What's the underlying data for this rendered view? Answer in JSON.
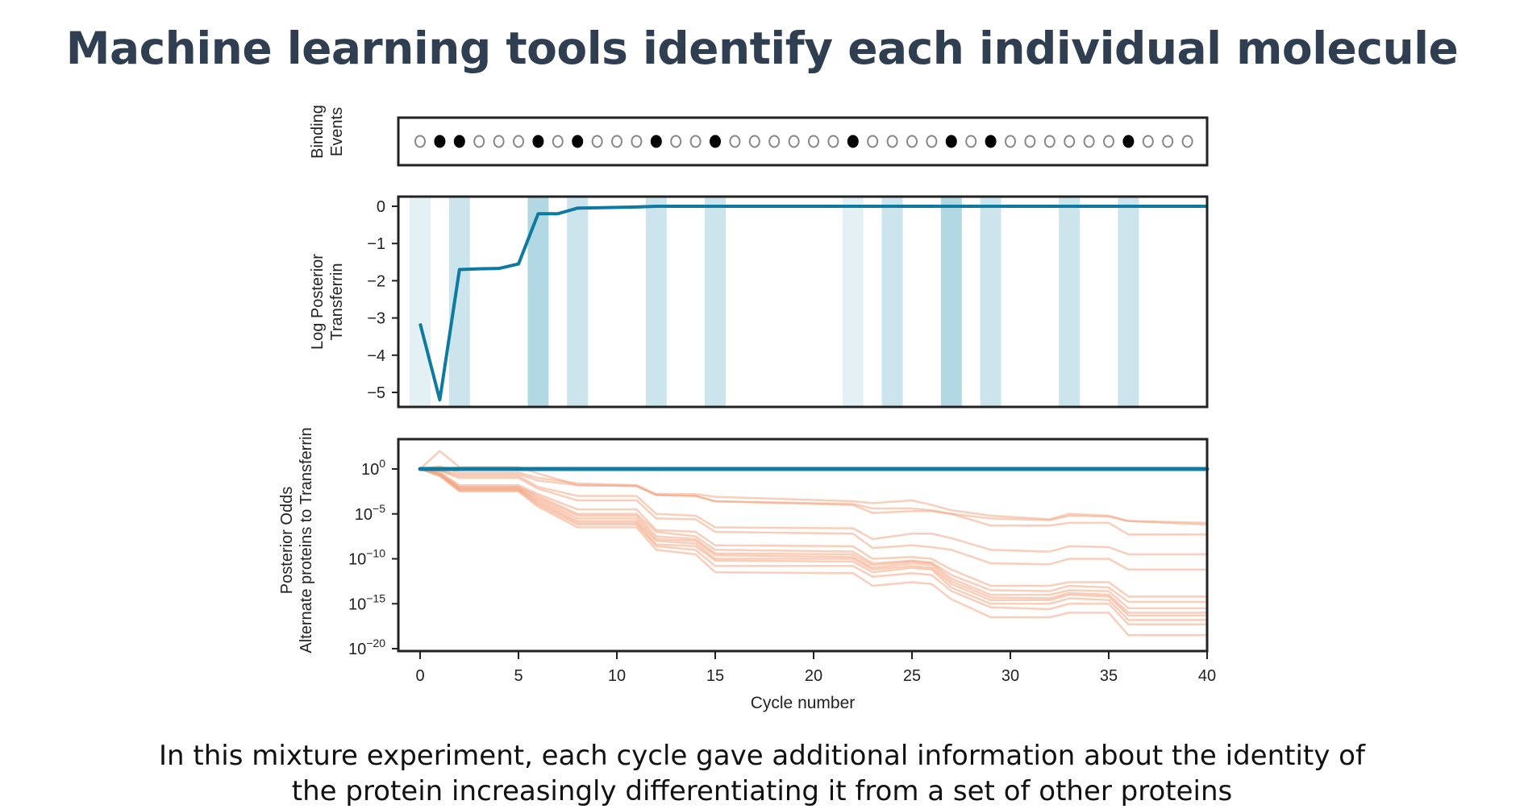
{
  "header": {
    "title": "Machine learning tools identify each individual molecule"
  },
  "caption": {
    "line1": "In this mixture experiment, each cycle gave additional information about the identity of",
    "line2": "the protein increasingly differentiating it from a set of other proteins"
  },
  "colors": {
    "transferrin": "#0e7aa0",
    "alternates": "#f4a582",
    "stripe_light": "#e3f1f5",
    "stripe_medium": "#cce5ed",
    "stripe_dark": "#b2d8e3",
    "event_filled": "#000000",
    "event_empty": "#888888"
  },
  "chart_data": [
    {
      "type": "scatter",
      "ylabel": [
        "Binding",
        "Events"
      ],
      "cycles": [
        0,
        1,
        2,
        3,
        4,
        5,
        6,
        7,
        8,
        9,
        10,
        11,
        12,
        13,
        14,
        15,
        16,
        17,
        18,
        19,
        20,
        21,
        22,
        23,
        24,
        25,
        26,
        27,
        28,
        29,
        30,
        31,
        32,
        33,
        34,
        35,
        36,
        37,
        38,
        39
      ],
      "binding_cycles": [
        1,
        2,
        6,
        8,
        12,
        15,
        22,
        27,
        29,
        36
      ]
    },
    {
      "type": "line",
      "ylabel": [
        "Log Posterior",
        "Transferrin"
      ],
      "ylim": [
        -5.5,
        0.15
      ],
      "xlim": [
        -0.6,
        40
      ],
      "yticks": [
        "0",
        "−1",
        "−2",
        "−3",
        "−4",
        "−5"
      ],
      "ytick_values": [
        0,
        -1,
        -2,
        -3,
        -4,
        -5
      ],
      "stripes": [
        {
          "cycle": 0,
          "shade": "light"
        },
        {
          "cycle": 2,
          "shade": "medium"
        },
        {
          "cycle": 6,
          "shade": "dark"
        },
        {
          "cycle": 8,
          "shade": "medium"
        },
        {
          "cycle": 12,
          "shade": "medium"
        },
        {
          "cycle": 15,
          "shade": "medium"
        },
        {
          "cycle": 22,
          "shade": "light"
        },
        {
          "cycle": 24,
          "shade": "medium"
        },
        {
          "cycle": 27,
          "shade": "dark"
        },
        {
          "cycle": 29,
          "shade": "medium"
        },
        {
          "cycle": 33,
          "shade": "medium"
        },
        {
          "cycle": 36,
          "shade": "medium"
        }
      ],
      "x": [
        0,
        1,
        2,
        3,
        4,
        5,
        6,
        7,
        8,
        9,
        10,
        11,
        12,
        40
      ],
      "y": [
        -3.15,
        -5.2,
        -1.7,
        -1.68,
        -1.67,
        -1.55,
        -0.2,
        -0.2,
        -0.05,
        -0.04,
        -0.03,
        -0.02,
        0,
        0
      ]
    },
    {
      "type": "line",
      "ylabel": [
        "Posterior Odds",
        "Alternate proteins to Transferrin"
      ],
      "xlabel": "Cycle number",
      "yscale": "log",
      "ylim_exponent": [
        -20.5,
        3.2
      ],
      "xlim": [
        -0.6,
        40
      ],
      "yticks": [
        "0",
        "−5",
        "−10",
        "−15",
        "−20"
      ],
      "ytick_values": [
        0,
        -5,
        -10,
        -15,
        -20
      ],
      "xticks": [
        "0",
        "5",
        "10",
        "15",
        "20",
        "25",
        "30",
        "35",
        "40"
      ],
      "xtick_values": [
        0,
        5,
        10,
        15,
        20,
        25,
        30,
        35,
        40
      ],
      "transferrin": {
        "x": [
          0,
          40
        ],
        "log10_y": [
          0,
          0
        ]
      },
      "x": [
        0,
        1,
        2,
        5,
        6,
        8,
        11,
        12,
        14,
        15,
        22,
        23,
        25,
        26,
        27,
        29,
        32,
        33,
        35,
        36,
        40
      ],
      "alternates_log10": [
        [
          0,
          2,
          0.2,
          0.2,
          -0.5,
          -1.8,
          -1.9,
          -2.9,
          -3,
          -3.6,
          -3.9,
          -4.4,
          -4.4,
          -4.6,
          -5,
          -5.5,
          -5.7,
          -5.2,
          -5.3,
          -5.8,
          -6.0
        ],
        [
          0,
          0.3,
          -0.4,
          -0.4,
          -1,
          -1.6,
          -1.8,
          -2.8,
          -2.8,
          -3.1,
          -3.6,
          -3.8,
          -3.5,
          -4,
          -4.6,
          -5.2,
          -5.6,
          -5,
          -5.2,
          -5.8,
          -6.2
        ],
        [
          0,
          -0.1,
          -0.6,
          -0.6,
          -1.3,
          -1.8,
          -1.9,
          -2.9,
          -3,
          -3.6,
          -4,
          -4.9,
          -4.7,
          -4.7,
          -5,
          -6.3,
          -6.3,
          -6,
          -6,
          -7.3,
          -7.3
        ],
        [
          0,
          -0.2,
          -0.8,
          -0.8,
          -2,
          -3,
          -3,
          -5,
          -5.2,
          -6.5,
          -6.6,
          -7.8,
          -7.2,
          -7.2,
          -7.7,
          -9,
          -9.2,
          -8.6,
          -8.7,
          -9.5,
          -9.5
        ],
        [
          0,
          -0.2,
          -1,
          -1,
          -2.2,
          -3.5,
          -3.5,
          -5.5,
          -5.6,
          -7,
          -7.2,
          -8.8,
          -8.5,
          -8.7,
          -9,
          -10.5,
          -10.6,
          -10,
          -10,
          -11.2,
          -11.2
        ],
        [
          0,
          -0.4,
          -1.8,
          -1.8,
          -2.8,
          -4.5,
          -4.5,
          -6.8,
          -7,
          -8.5,
          -8.6,
          -10,
          -9.8,
          -10,
          -11.2,
          -13,
          -13,
          -12.6,
          -12.6,
          -14.2,
          -14.2
        ],
        [
          0,
          -0.5,
          -2,
          -2,
          -3,
          -5,
          -5,
          -7,
          -7.5,
          -9,
          -9.2,
          -10.5,
          -10.2,
          -10.4,
          -11.8,
          -13.5,
          -13.6,
          -13,
          -13.2,
          -14.8,
          -14.8
        ],
        [
          0,
          -0.5,
          -2,
          -2,
          -3.2,
          -5.2,
          -5.2,
          -7.5,
          -7.8,
          -9.4,
          -9.5,
          -10.7,
          -10.3,
          -10.5,
          -12.2,
          -14,
          -14,
          -13.5,
          -13.6,
          -15.5,
          -15.5
        ],
        [
          0,
          -0.6,
          -2.2,
          -2.2,
          -3.4,
          -5.5,
          -5.5,
          -7.8,
          -8,
          -9.6,
          -9.8,
          -11,
          -10.5,
          -10.7,
          -12.5,
          -14.3,
          -14.4,
          -13.8,
          -14,
          -16,
          -16
        ],
        [
          0,
          -0.6,
          -2.2,
          -2.2,
          -3.6,
          -5.8,
          -5.8,
          -8,
          -8.3,
          -10,
          -10,
          -11.2,
          -10.8,
          -11,
          -12.8,
          -14.6,
          -14.6,
          -14,
          -14.2,
          -16.3,
          -16.3
        ],
        [
          0,
          -0.7,
          -2.3,
          -2.3,
          -3.8,
          -6,
          -6,
          -8.4,
          -8.6,
          -10.2,
          -10.3,
          -11.5,
          -11,
          -11.2,
          -13.2,
          -15,
          -15,
          -14.4,
          -14.6,
          -16.8,
          -16.8
        ],
        [
          0,
          -0.7,
          -2.4,
          -2.4,
          -4,
          -6.2,
          -6.2,
          -8.6,
          -9,
          -10.8,
          -10.8,
          -12,
          -11.6,
          -11.8,
          -13.6,
          -15.4,
          -15.6,
          -15,
          -15,
          -17.3,
          -17.3
        ],
        [
          0,
          -0.8,
          -2.5,
          -2.5,
          -4.2,
          -6.5,
          -6.5,
          -9,
          -9.5,
          -11.5,
          -11.6,
          -13,
          -12.6,
          -12.8,
          -14.5,
          -16.5,
          -16.5,
          -16,
          -16,
          -18.5,
          -18.5
        ]
      ]
    }
  ]
}
